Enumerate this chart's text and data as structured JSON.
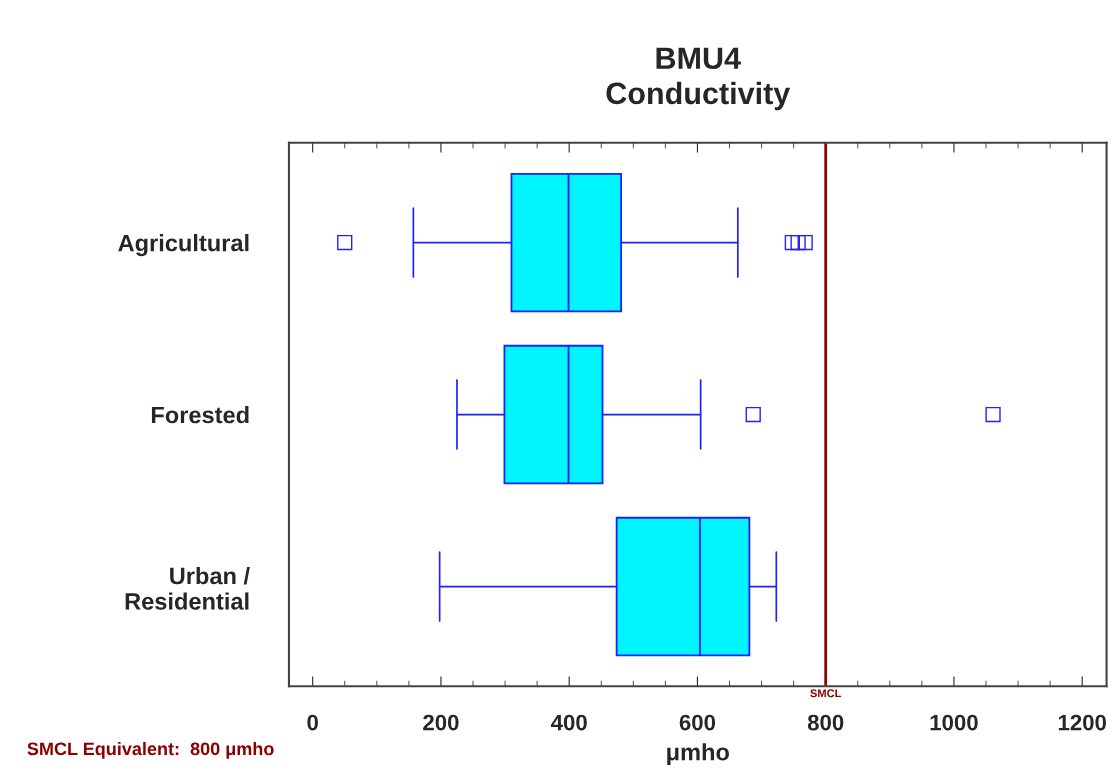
{
  "chart_data": {
    "type": "box",
    "orientation": "horizontal",
    "title": "BMU4\nConductivity",
    "xlabel": "μmho",
    "categories": [
      "Agricultural",
      "Forested",
      "Urban /\nResidential"
    ],
    "boxes": [
      {
        "low": 157,
        "q1": 310,
        "median": 399,
        "q3": 481,
        "high": 663,
        "outliers": [
          50,
          748,
          757,
          768
        ]
      },
      {
        "low": 225,
        "q1": 299,
        "median": 399,
        "q3": 452,
        "high": 605,
        "outliers": [
          687,
          1061
        ]
      },
      {
        "low": 198,
        "q1": 474,
        "median": 604,
        "q3": 681,
        "high": 723
      }
    ],
    "color": "#00f5ff",
    "xlim": [
      -37,
      1238
    ],
    "xticks": [
      0,
      200,
      400,
      600,
      800,
      1000,
      1200
    ],
    "ref_lines": [
      {
        "axis": "x",
        "value": 800,
        "label": "SMCL",
        "color": "#8b0000"
      }
    ],
    "annotations": [
      "SMCL Equivalent:  800 μmho"
    ],
    "grid": false,
    "legend": false,
    "marker": "square"
  }
}
